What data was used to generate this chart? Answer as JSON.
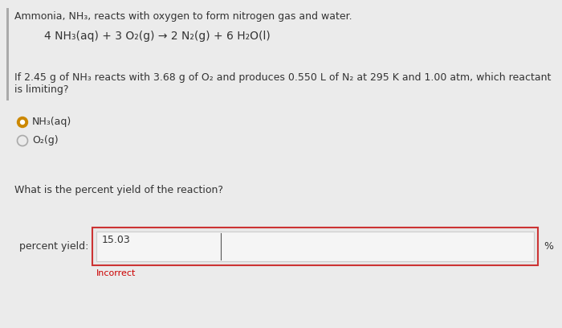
{
  "bg_color": "#ebebeb",
  "title_line": "Ammonia, NH₃, reacts with oxygen to form nitrogen gas and water.",
  "equation_line": "4 NH₃(aq) + 3 O₂(g) → 2 N₂(g) + 6 H₂O(l)",
  "question_line": "If 2.45 g of NH₃ reacts with 3.68 g of O₂ and produces 0.550 L of N₂ at 295 K and 1.00 atm, which reactant is limiting?",
  "option1": "NH₃(aq)",
  "option2": "O₂(g)",
  "question2": "What is the percent yield of the reaction?",
  "answer_value": "15.03",
  "answer_label": "percent yield:",
  "answer_unit": "%",
  "feedback": "Incorrect",
  "feedback_color": "#cc0000",
  "box_border_color": "#cc3333",
  "input_bg": "#f5f5f5",
  "radio_selected_fill": "#cc8800",
  "radio_selected_ring": "#cc8800",
  "radio_unselected_ring": "#aaaaaa",
  "left_bar_color": "#aaaaaa",
  "font_color": "#333333",
  "font_size_title": 9,
  "font_size_eq": 10,
  "font_size_body": 9,
  "font_size_small": 8
}
